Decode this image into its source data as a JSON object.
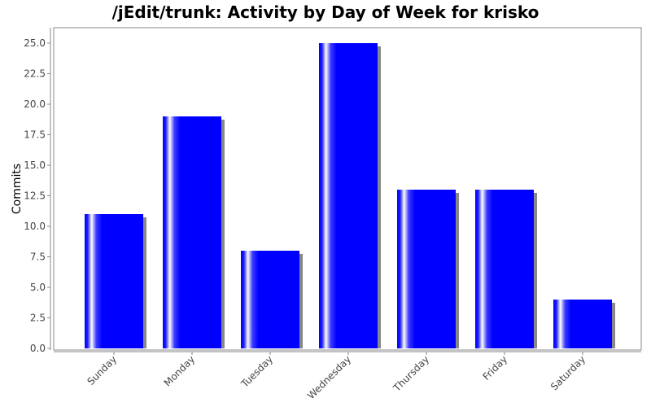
{
  "chart_data": {
    "type": "bar",
    "title": "/jEdit/trunk: Activity by Day of Week for krisko",
    "xlabel": "",
    "ylabel": "Commits",
    "categories": [
      "Sunday",
      "Monday",
      "Tuesday",
      "Wednesday",
      "Thursday",
      "Friday",
      "Saturday"
    ],
    "values": [
      11,
      19,
      8,
      25,
      13,
      13,
      4
    ],
    "ylim": [
      0,
      26.5
    ],
    "yticks": [
      "0.0",
      "2.5",
      "5.0",
      "7.5",
      "10.0",
      "12.5",
      "15.0",
      "17.5",
      "20.0",
      "22.5",
      "25.0"
    ],
    "grid": false,
    "colors": {
      "bar": "#0000ff",
      "bar_highlight": "#ffffff",
      "shadow": "#888888",
      "axis": "#888888",
      "plot_border": "#888888",
      "background": "#ffffff"
    }
  }
}
